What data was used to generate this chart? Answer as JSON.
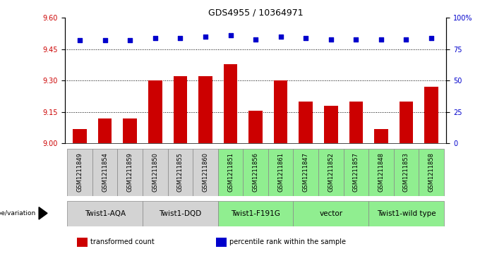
{
  "title": "GDS4955 / 10364971",
  "samples": [
    "GSM1211849",
    "GSM1211854",
    "GSM1211859",
    "GSM1211850",
    "GSM1211855",
    "GSM1211860",
    "GSM1211851",
    "GSM1211856",
    "GSM1211861",
    "GSM1211847",
    "GSM1211852",
    "GSM1211857",
    "GSM1211848",
    "GSM1211853",
    "GSM1211858"
  ],
  "bar_values": [
    9.07,
    9.12,
    9.12,
    9.3,
    9.32,
    9.32,
    9.38,
    9.155,
    9.3,
    9.2,
    9.18,
    9.2,
    9.07,
    9.2,
    9.27
  ],
  "percentile_values": [
    82,
    82,
    82,
    84,
    84,
    85,
    86,
    83,
    85,
    84,
    83,
    83,
    83,
    83,
    84
  ],
  "bar_color": "#cc0000",
  "percentile_color": "#0000cc",
  "ylim_left": [
    9.0,
    9.6
  ],
  "ylim_right": [
    0,
    100
  ],
  "yticks_left": [
    9.0,
    9.15,
    9.3,
    9.45,
    9.6
  ],
  "yticks_right": [
    0,
    25,
    50,
    75,
    100
  ],
  "ytick_labels_right": [
    "0",
    "25",
    "50",
    "75",
    "100%"
  ],
  "hlines": [
    9.15,
    9.3,
    9.45
  ],
  "groups": [
    {
      "label": "Twist1-AQA",
      "start": 0,
      "end": 3,
      "color": "#d3d3d3"
    },
    {
      "label": "Twist1-DQD",
      "start": 3,
      "end": 6,
      "color": "#d3d3d3"
    },
    {
      "label": "Twist1-F191G",
      "start": 6,
      "end": 9,
      "color": "#90ee90"
    },
    {
      "label": "vector",
      "start": 9,
      "end": 12,
      "color": "#90ee90"
    },
    {
      "label": "Twist1-wild type",
      "start": 12,
      "end": 15,
      "color": "#90ee90"
    }
  ],
  "sample_colors": [
    "#d3d3d3",
    "#d3d3d3",
    "#d3d3d3",
    "#d3d3d3",
    "#d3d3d3",
    "#d3d3d3",
    "#90ee90",
    "#90ee90",
    "#90ee90",
    "#90ee90",
    "#90ee90",
    "#90ee90",
    "#90ee90",
    "#90ee90",
    "#90ee90"
  ],
  "legend_items": [
    {
      "label": "transformed count",
      "color": "#cc0000"
    },
    {
      "label": "percentile rank within the sample",
      "color": "#0000cc"
    }
  ],
  "genotype_label": "genotype/variation",
  "xlabel_color": "#cc0000",
  "ylabel_right_color": "#0000cc",
  "title_fontsize": 9,
  "tick_fontsize": 7,
  "sample_fontsize": 6,
  "group_fontsize": 7.5
}
